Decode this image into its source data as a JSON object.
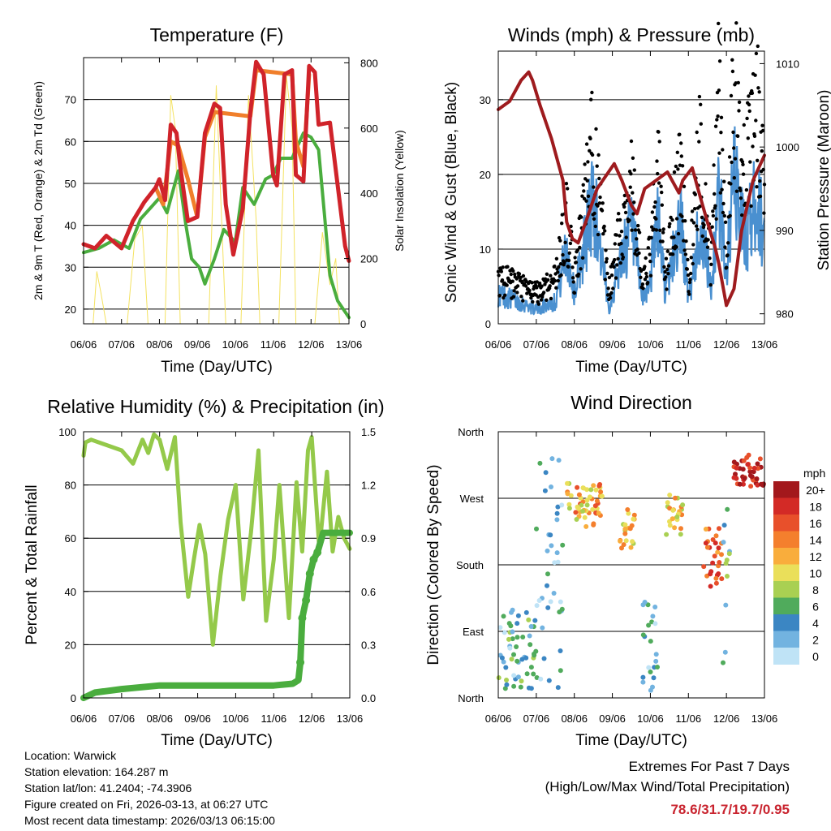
{
  "colors": {
    "temp2m": "#d0232a",
    "temp9m": "#f07f2b",
    "dewpoint": "#4aad3e",
    "solar": "#f4e261",
    "sonic": "#4a90d0",
    "gust": "#000000",
    "pressure": "#9e1b1e",
    "rh": "#94c94a",
    "precip": "#4aad3e",
    "extremes_value": "#c9242f"
  },
  "x_ticks": [
    "06/06",
    "07/06",
    "08/06",
    "09/06",
    "10/06",
    "11/06",
    "12/06",
    "13/06"
  ],
  "xlabel": "Time (Day/UTC)",
  "chart_data": [
    {
      "type": "line",
      "title": "Temperature (F)",
      "xlabel": "Time (Day/UTC)",
      "ylabel": "2m & 9m T (Red, Orange) & 2m Td (Green)",
      "y2label": "Solar Insolation (Yellow)",
      "ylim": [
        16.5,
        80
      ],
      "y_ticks": [
        20,
        30,
        40,
        50,
        60,
        70
      ],
      "y2lim": [
        0,
        816
      ],
      "y2_ticks": [
        0,
        200,
        400,
        600,
        800
      ],
      "series": [
        {
          "name": "2m T",
          "axis": "left",
          "color": "temp2m",
          "x": [
            0,
            0.3,
            0.6,
            1.0,
            1.3,
            1.6,
            1.9,
            2.0,
            2.15,
            2.3,
            2.45,
            2.55,
            2.75,
            3.0,
            3.2,
            3.45,
            3.6,
            3.75,
            3.95,
            4.2,
            4.4,
            4.55,
            4.75,
            5.0,
            5.1,
            5.3,
            5.5,
            5.6,
            5.8,
            5.95,
            6.1,
            6.2,
            6.5,
            6.9,
            7.0
          ],
          "values": [
            35.5,
            34.5,
            37.5,
            34.5,
            41,
            45.5,
            49,
            51,
            46,
            64,
            62,
            54,
            41,
            42,
            62,
            69,
            68,
            45,
            33,
            44,
            67,
            79,
            76,
            52,
            49.5,
            76,
            77,
            52,
            50.5,
            78,
            76.5,
            64,
            64.5,
            35,
            31.5
          ]
        },
        {
          "name": "9m T",
          "axis": "left",
          "color": "temp9m",
          "x": [
            1.9,
            2.1,
            2.3,
            2.5,
            2.75,
            3.0,
            3.2,
            3.45,
            4.4,
            4.55,
            5.5,
            5.6,
            5.8,
            5.95
          ],
          "values": [
            49,
            45,
            60,
            59,
            51,
            42,
            61,
            67,
            66,
            77,
            76,
            60,
            54,
            76
          ]
        },
        {
          "name": "2m Td",
          "axis": "left",
          "color": "dewpoint",
          "x": [
            0,
            0.4,
            0.8,
            1.2,
            1.5,
            1.8,
            2.0,
            2.2,
            2.5,
            2.7,
            2.85,
            3.05,
            3.2,
            3.45,
            3.7,
            4.0,
            4.2,
            4.5,
            4.8,
            5.0,
            5.2,
            5.5,
            5.8,
            6.0,
            6.2,
            6.5,
            6.7,
            7.0
          ],
          "values": [
            33.5,
            34.5,
            36.5,
            34.5,
            41.5,
            44.5,
            46.5,
            43,
            53,
            40,
            32,
            30,
            26,
            32,
            39,
            36,
            49,
            45,
            51,
            52,
            56,
            56,
            62,
            61,
            58,
            28,
            22,
            18
          ]
        },
        {
          "name": "Solar",
          "axis": "right",
          "color": "solar",
          "x": [
            0.25,
            0.35,
            0.45,
            0.6,
            1.15,
            1.35,
            1.55,
            1.7,
            2.15,
            2.3,
            2.42,
            2.55,
            2.85,
            3.3,
            3.5,
            3.75,
            4.15,
            4.35,
            4.55,
            4.65,
            4.85,
            5.15,
            5.35,
            5.5,
            5.6,
            5.8,
            6.1,
            6.3,
            6.5,
            6.65,
            6.75
          ],
          "values": [
            0,
            160,
            100,
            0,
            0,
            260,
            300,
            0,
            0,
            700,
            600,
            0,
            0,
            0,
            730,
            0,
            0,
            700,
            320,
            0,
            0,
            0,
            760,
            600,
            0,
            0,
            0,
            280,
            120,
            200,
            0
          ]
        }
      ]
    },
    {
      "type": "line",
      "title": "Winds (mph) & Pressure (mb)",
      "xlabel": "Time (Day/UTC)",
      "ylabel": "Sonic Wind & Gust (Blue, Black)",
      "y2label": "Station Pressure (Maroon)",
      "ylim": [
        0,
        36.5
      ],
      "y_ticks": [
        0,
        10,
        20,
        30
      ],
      "y2lim": [
        978.8,
        1011.5
      ],
      "y2_ticks": [
        980,
        990,
        1000,
        1010
      ],
      "series": [
        {
          "name": "Sonic Wind",
          "axis": "left",
          "color": "sonic",
          "x": [
            0,
            0.5,
            1.0,
            1.5,
            1.8,
            2.0,
            2.2,
            2.5,
            2.9,
            3.2,
            3.5,
            3.8,
            4.0,
            4.2,
            4.4,
            4.8,
            5.0,
            5.3,
            5.6,
            5.8,
            6.0,
            6.2,
            6.5,
            6.8,
            7.0
          ],
          "values": [
            4,
            3,
            2,
            3,
            10,
            4,
            9,
            17,
            2,
            8,
            13,
            3,
            6,
            14,
            4,
            14,
            3,
            13,
            5,
            17,
            7,
            19,
            11,
            17,
            11
          ]
        },
        {
          "name": "Gust",
          "axis": "left",
          "color": "gust",
          "x": [
            0,
            0.5,
            1.0,
            1.5,
            1.8,
            2.0,
            2.2,
            2.5,
            2.9,
            3.2,
            3.5,
            3.8,
            4.0,
            4.2,
            4.4,
            4.8,
            5.0,
            5.3,
            5.6,
            5.8,
            6.0,
            6.2,
            6.5,
            6.8,
            7.0
          ],
          "values": [
            6,
            5,
            4,
            6,
            14,
            6,
            13,
            24,
            4,
            12,
            19,
            5,
            9,
            21,
            6,
            21,
            5,
            23,
            8,
            30,
            10,
            32,
            20,
            28,
            19
          ]
        },
        {
          "name": "Pressure",
          "axis": "right",
          "color": "pressure",
          "x": [
            0,
            0.3,
            0.6,
            0.8,
            0.9,
            1.1,
            1.4,
            1.7,
            1.8,
            1.95,
            2.1,
            2.3,
            2.6,
            3.05,
            3.25,
            3.5,
            3.65,
            3.85,
            4.15,
            4.45,
            4.75,
            4.85,
            5.1,
            5.25,
            5.5,
            5.7,
            5.8,
            6.0,
            6.2,
            6.4,
            6.7,
            7.0
          ],
          "values": [
            1004.5,
            1005.5,
            1008,
            1009,
            1008,
            1005,
            1001,
            996,
            991,
            989,
            988.5,
            991,
            995,
            998,
            996,
            993,
            992,
            995,
            996,
            997,
            994.5,
            996,
            997.5,
            995,
            991,
            988,
            986,
            981,
            983,
            990,
            996,
            999
          ]
        }
      ]
    },
    {
      "type": "line",
      "title": "Relative Humidity (%) & Precipitation (in)",
      "xlabel": "Time (Day/UTC)",
      "ylabel": "Percent & Total Rainfall",
      "ylim": [
        0,
        100
      ],
      "y_ticks": [
        0,
        20,
        40,
        60,
        80,
        100
      ],
      "y2lim": [
        0,
        1.5
      ],
      "y2_ticks": [
        "0.0",
        "0.3",
        "0.6",
        "0.9",
        "1.2",
        "1.5"
      ],
      "series": [
        {
          "name": "Relative Humidity",
          "axis": "left",
          "color": "rh",
          "x": [
            0,
            0.05,
            0.2,
            0.6,
            1.0,
            1.3,
            1.55,
            1.7,
            1.85,
            2.0,
            2.2,
            2.4,
            2.55,
            2.75,
            2.9,
            3.05,
            3.2,
            3.4,
            3.6,
            3.8,
            4.0,
            4.2,
            4.4,
            4.6,
            4.8,
            5.0,
            5.15,
            5.4,
            5.6,
            5.75,
            5.9,
            6.0,
            6.2,
            6.4,
            6.55,
            6.7,
            6.85,
            7.0
          ],
          "values": [
            91,
            96,
            97,
            95,
            93,
            88,
            97,
            92,
            99,
            97,
            86,
            98,
            66,
            38,
            52,
            65,
            54,
            20,
            46,
            67,
            80,
            37,
            62,
            93,
            29,
            52,
            80,
            30,
            81,
            55,
            93,
            98,
            56,
            85,
            55,
            68,
            60,
            56
          ]
        },
        {
          "name": "Total Precipitation",
          "axis": "right",
          "color": "precip",
          "x": [
            0,
            0.3,
            1.0,
            2.0,
            3.0,
            4.0,
            5.0,
            5.5,
            5.65,
            5.7,
            5.75,
            5.85,
            5.95,
            6.05,
            6.15,
            6.3,
            6.6,
            7.0
          ],
          "values": [
            0,
            0.03,
            0.05,
            0.07,
            0.07,
            0.07,
            0.07,
            0.08,
            0.1,
            0.2,
            0.45,
            0.55,
            0.7,
            0.78,
            0.82,
            0.93,
            0.93,
            0.93
          ]
        }
      ]
    },
    {
      "type": "scatter",
      "title": "Wind Direction",
      "xlabel": "Time (Day/UTC)",
      "ylabel": "Direction (Colored By Speed)",
      "y_categories": [
        "North",
        "East",
        "South",
        "West",
        "North"
      ],
      "ylim": [
        0,
        360
      ],
      "colorbar": {
        "unit": "mph",
        "labels": [
          "20+",
          "18",
          "16",
          "14",
          "12",
          "10",
          "8",
          "6",
          "4",
          "2",
          "0"
        ],
        "colors": [
          "#a3181c",
          "#d32a26",
          "#e8502b",
          "#f47f2d",
          "#f9ad3c",
          "#eadf5a",
          "#a9d052",
          "#50ab5c",
          "#3b86c3",
          "#72b3e0",
          "#bfe3f6"
        ]
      },
      "clusters": [
        {
          "x_from": 0.0,
          "x_to": 1.0,
          "dir_from": 10,
          "dir_to": 120,
          "speed": 4
        },
        {
          "x_from": 1.0,
          "x_to": 1.7,
          "dir_from": 0,
          "dir_to": 340,
          "speed": 3
        },
        {
          "x_from": 1.8,
          "x_to": 2.75,
          "dir_from": 230,
          "dir_to": 290,
          "speed": 12
        },
        {
          "x_from": 3.2,
          "x_to": 3.6,
          "dir_from": 200,
          "dir_to": 260,
          "speed": 11
        },
        {
          "x_from": 4.4,
          "x_to": 4.85,
          "dir_from": 220,
          "dir_to": 275,
          "speed": 11
        },
        {
          "x_from": 5.4,
          "x_to": 5.9,
          "dir_from": 150,
          "dir_to": 230,
          "speed": 15
        },
        {
          "x_from": 6.2,
          "x_to": 7.0,
          "dir_from": 285,
          "dir_to": 330,
          "speed": 19
        },
        {
          "x_from": 3.8,
          "x_to": 4.2,
          "dir_from": 10,
          "dir_to": 130,
          "speed": 3
        },
        {
          "x_from": 5.9,
          "x_to": 6.1,
          "dir_from": 20,
          "dir_to": 300,
          "speed": 5
        }
      ]
    }
  ],
  "footer": {
    "location": "Location: Warwick",
    "elevation": "Station elevation: 164.287 m",
    "latlon": "Station lat/lon: 41.2404; -74.3906",
    "created": "Figure created on Fri, 2026-03-13, at 06:27 UTC",
    "recent": "Most recent data timestamp: 2026/03/13 06:15:00"
  },
  "extremes": {
    "title": "Extremes For Past 7 Days",
    "subtitle": "(High/Low/Max Wind/Total Precipitation)",
    "values": "78.6/31.7/19.7/0.95"
  }
}
